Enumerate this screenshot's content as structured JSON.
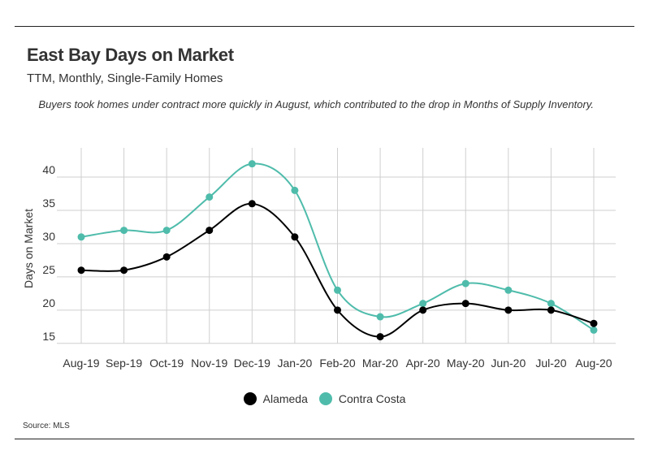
{
  "header": {
    "title": "East Bay Days on Market",
    "subtitle": "TTM, Monthly, Single-Family Homes",
    "note": "Buyers took homes under contract more quickly in August, which contributed to the drop in Months of Supply Inventory."
  },
  "source": "Source:  MLS",
  "chart_data": {
    "type": "line",
    "title": "East Bay Days on Market",
    "subtitle": "TTM, Monthly, Single-Family Homes",
    "xlabel": "",
    "ylabel": "Days on Market",
    "ylim": [
      14,
      44
    ],
    "yticks": [
      15,
      20,
      25,
      30,
      35,
      40
    ],
    "grid": true,
    "legend_position": "bottom",
    "categories": [
      "Aug-19",
      "Sep-19",
      "Oct-19",
      "Nov-19",
      "Dec-19",
      "Jan-20",
      "Feb-20",
      "Mar-20",
      "Apr-20",
      "May-20",
      "Jun-20",
      "Jul-20",
      "Aug-20"
    ],
    "series": [
      {
        "name": "Alameda",
        "color": "#000000",
        "values": [
          26,
          26,
          28,
          32,
          36,
          31,
          20,
          16,
          20,
          21,
          20,
          20,
          18
        ]
      },
      {
        "name": "Contra Costa",
        "color": "#4fbcab",
        "values": [
          31,
          32,
          32,
          37,
          42,
          38,
          23,
          19,
          21,
          24,
          23,
          21,
          17
        ]
      }
    ]
  }
}
